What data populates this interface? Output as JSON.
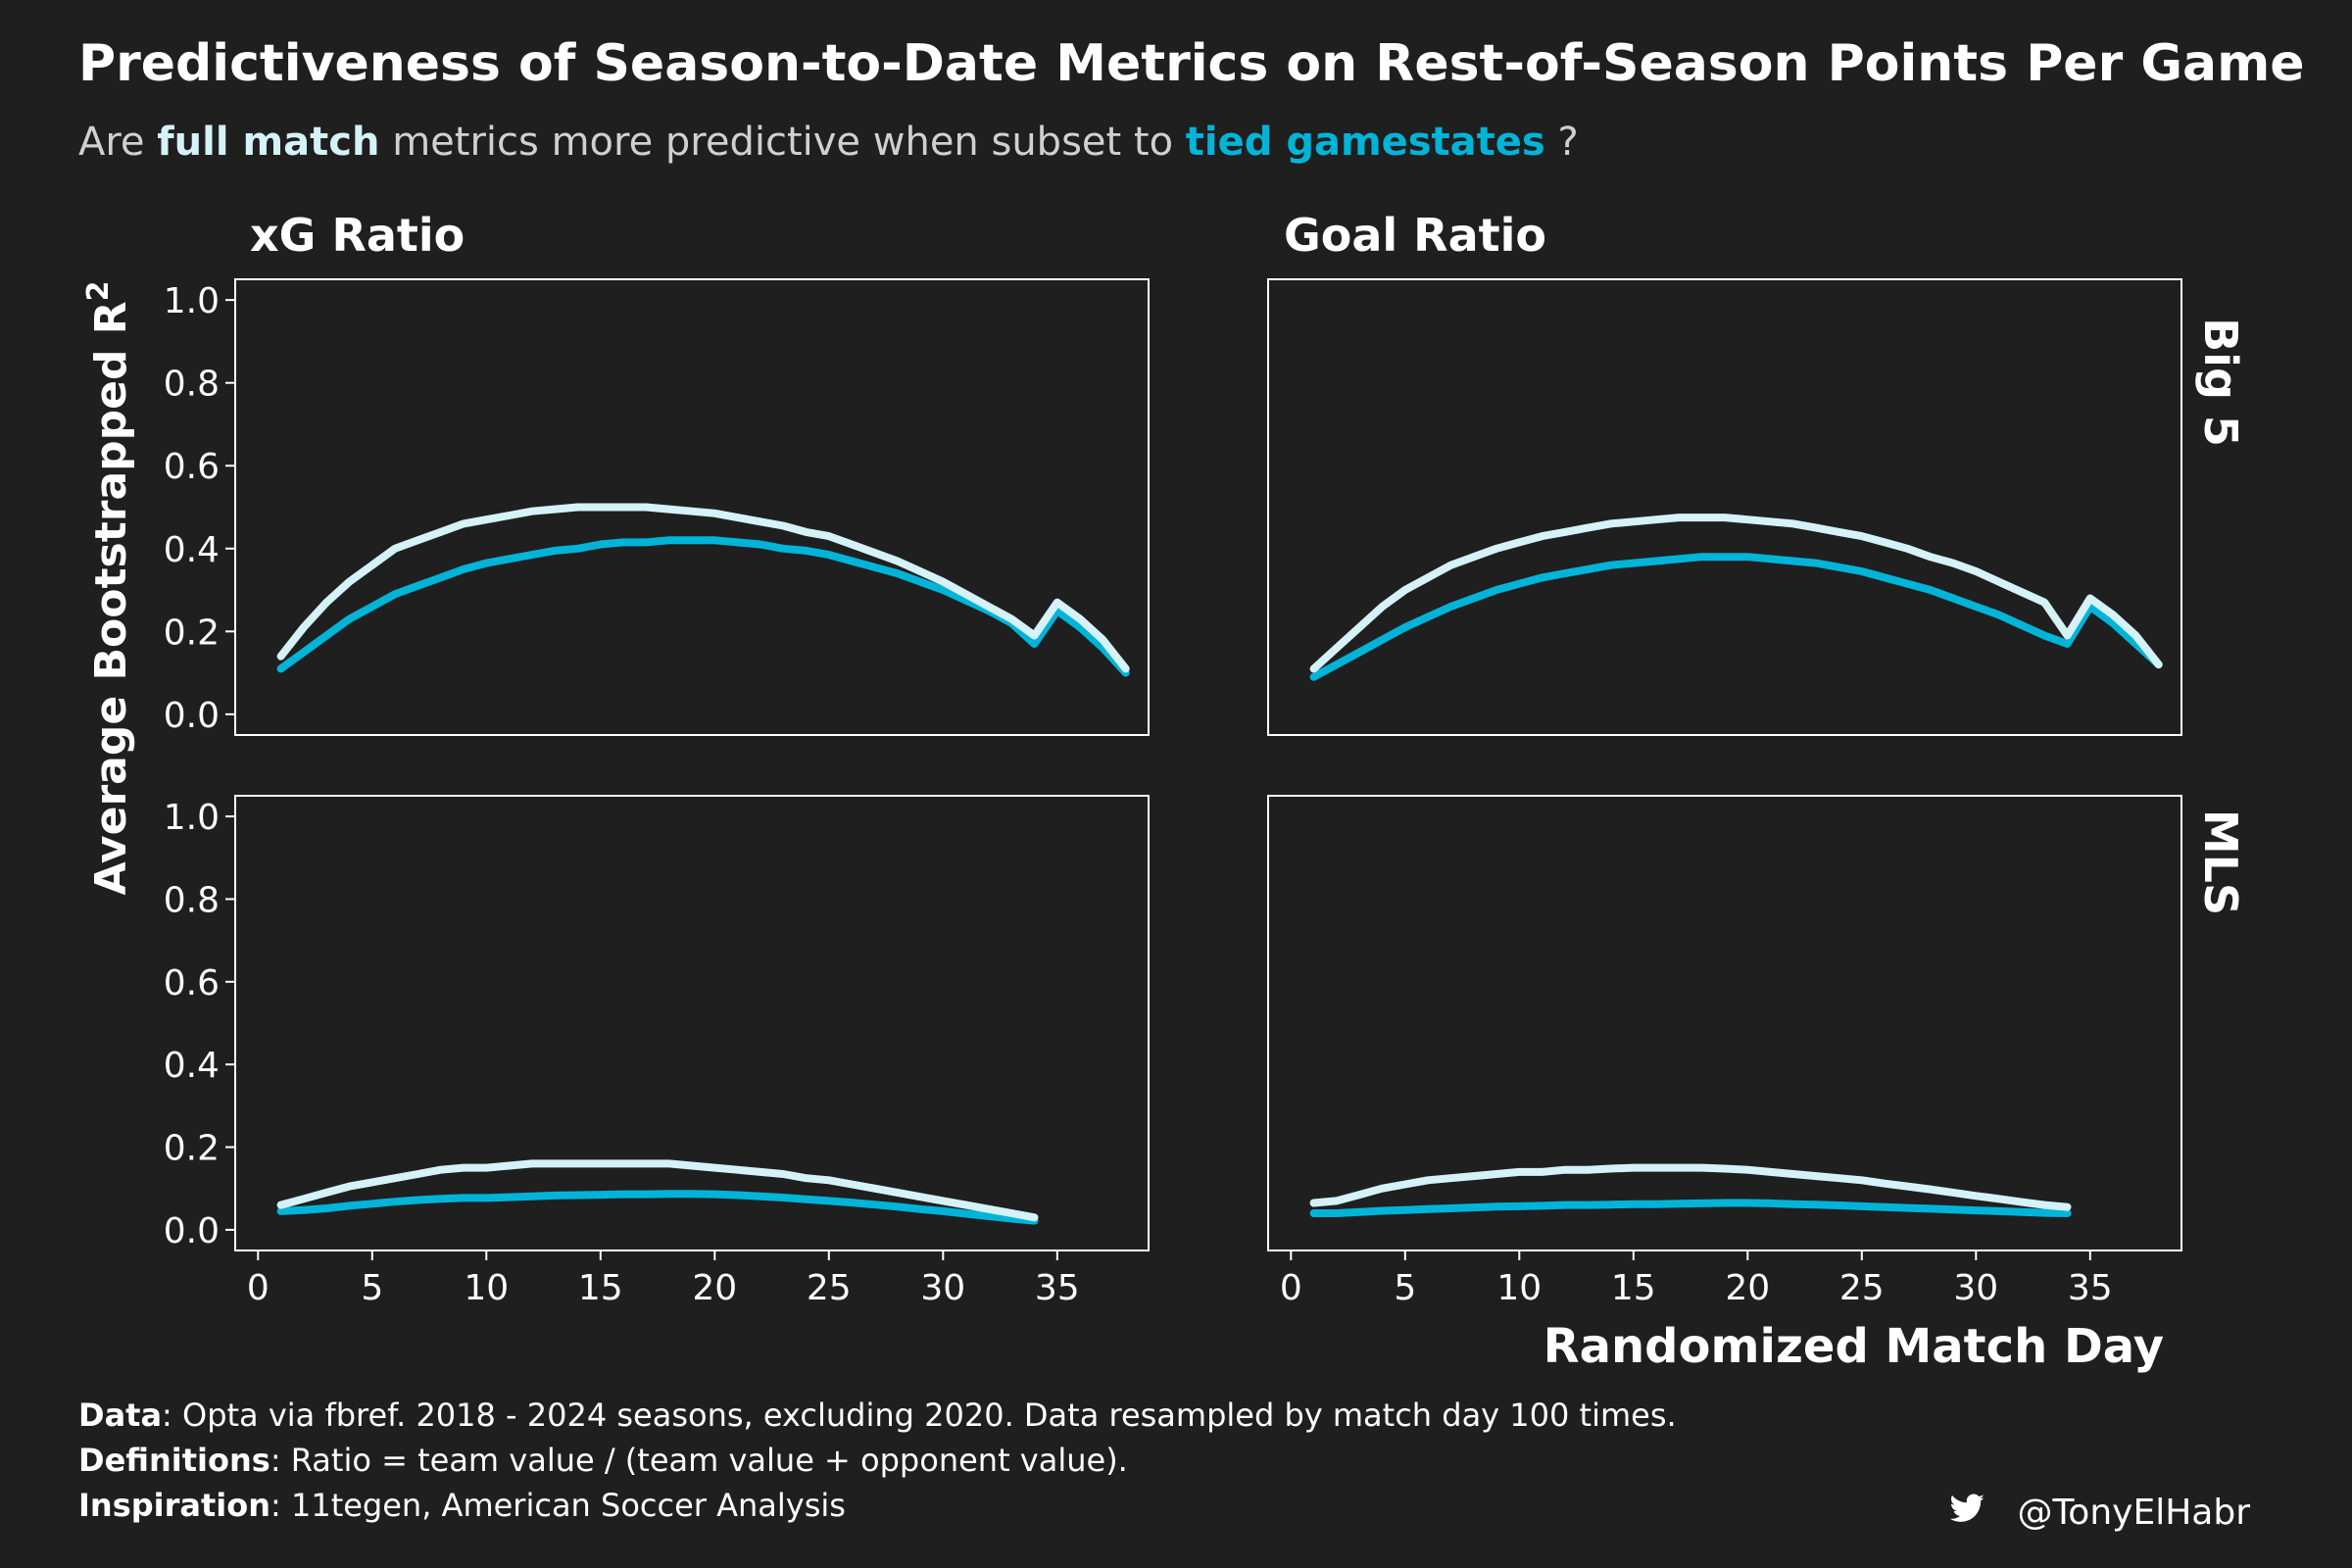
{
  "title": "Predictiveness of Season-to-Date Metrics on Rest-of-Season Points Per Game",
  "subtitle": {
    "prefix": "Are ",
    "full_match": "full match",
    "middle": " metrics more predictive when subset to ",
    "tied": "tied gamestates",
    "suffix": "?"
  },
  "colors": {
    "background": "#1f1f1f",
    "full_match": "#d4f2f7",
    "tied_gamestates": "#00b4d8",
    "subtitle_text": "#d0d0d0"
  },
  "facets": {
    "columns": [
      "xG Ratio",
      "Goal Ratio"
    ],
    "rows": [
      "Big 5",
      "MLS"
    ]
  },
  "ylabel": "Average Bootstrapped R",
  "ylabel_sup": "2",
  "xlabel": "Randomized Match Day",
  "y_ticks": [
    "0.0",
    "0.2",
    "0.4",
    "0.6",
    "0.8",
    "1.0"
  ],
  "x_ticks": [
    "0",
    "5",
    "10",
    "15",
    "20",
    "25",
    "30",
    "35"
  ],
  "chart_data": [
    {
      "type": "line",
      "metric": "xG Ratio",
      "league": "Big 5",
      "xlim": [
        -1,
        39
      ],
      "ylim": [
        -0.05,
        1.05
      ],
      "x": [
        1,
        2,
        3,
        4,
        5,
        6,
        7,
        8,
        9,
        10,
        11,
        12,
        13,
        14,
        15,
        16,
        17,
        18,
        19,
        20,
        21,
        22,
        23,
        24,
        25,
        26,
        27,
        28,
        29,
        30,
        31,
        32,
        33,
        34,
        35,
        36,
        37,
        38
      ],
      "series": [
        {
          "name": "full match",
          "values": [
            0.14,
            0.21,
            0.27,
            0.32,
            0.36,
            0.4,
            0.42,
            0.44,
            0.46,
            0.47,
            0.48,
            0.49,
            0.495,
            0.5,
            0.5,
            0.5,
            0.5,
            0.495,
            0.49,
            0.485,
            0.475,
            0.465,
            0.455,
            0.44,
            0.43,
            0.41,
            0.39,
            0.37,
            0.345,
            0.32,
            0.29,
            0.26,
            0.23,
            0.19,
            0.27,
            0.23,
            0.18,
            0.11
          ]
        },
        {
          "name": "tied gamestates",
          "values": [
            0.11,
            0.15,
            0.19,
            0.23,
            0.26,
            0.29,
            0.31,
            0.33,
            0.35,
            0.365,
            0.375,
            0.385,
            0.395,
            0.4,
            0.41,
            0.415,
            0.415,
            0.42,
            0.42,
            0.42,
            0.415,
            0.41,
            0.4,
            0.395,
            0.385,
            0.37,
            0.355,
            0.34,
            0.32,
            0.3,
            0.275,
            0.25,
            0.22,
            0.17,
            0.25,
            0.21,
            0.16,
            0.1
          ]
        }
      ]
    },
    {
      "type": "line",
      "metric": "Goal Ratio",
      "league": "Big 5",
      "xlim": [
        -1,
        39
      ],
      "ylim": [
        -0.05,
        1.05
      ],
      "x": [
        1,
        2,
        3,
        4,
        5,
        6,
        7,
        8,
        9,
        10,
        11,
        12,
        13,
        14,
        15,
        16,
        17,
        18,
        19,
        20,
        21,
        22,
        23,
        24,
        25,
        26,
        27,
        28,
        29,
        30,
        31,
        32,
        33,
        34,
        35,
        36,
        37,
        38
      ],
      "series": [
        {
          "name": "full match",
          "values": [
            0.11,
            0.16,
            0.21,
            0.26,
            0.3,
            0.33,
            0.36,
            0.38,
            0.4,
            0.415,
            0.43,
            0.44,
            0.45,
            0.46,
            0.465,
            0.47,
            0.475,
            0.475,
            0.475,
            0.47,
            0.465,
            0.46,
            0.45,
            0.44,
            0.43,
            0.415,
            0.4,
            0.38,
            0.365,
            0.345,
            0.32,
            0.295,
            0.27,
            0.19,
            0.28,
            0.24,
            0.19,
            0.12
          ]
        },
        {
          "name": "tied gamestates",
          "values": [
            0.09,
            0.12,
            0.15,
            0.18,
            0.21,
            0.235,
            0.26,
            0.28,
            0.3,
            0.315,
            0.33,
            0.34,
            0.35,
            0.36,
            0.365,
            0.37,
            0.375,
            0.38,
            0.38,
            0.38,
            0.375,
            0.37,
            0.365,
            0.355,
            0.345,
            0.33,
            0.315,
            0.3,
            0.28,
            0.26,
            0.24,
            0.215,
            0.19,
            0.17,
            0.26,
            0.22,
            0.17,
            0.12
          ]
        }
      ]
    },
    {
      "type": "line",
      "metric": "xG Ratio",
      "league": "MLS",
      "xlim": [
        -1,
        39
      ],
      "ylim": [
        -0.05,
        1.05
      ],
      "x": [
        1,
        2,
        3,
        4,
        5,
        6,
        7,
        8,
        9,
        10,
        11,
        12,
        13,
        14,
        15,
        16,
        17,
        18,
        19,
        20,
        21,
        22,
        23,
        24,
        25,
        26,
        27,
        28,
        29,
        30,
        31,
        32,
        33,
        34
      ],
      "series": [
        {
          "name": "full match",
          "values": [
            0.06,
            0.075,
            0.09,
            0.105,
            0.115,
            0.125,
            0.135,
            0.145,
            0.15,
            0.15,
            0.155,
            0.16,
            0.16,
            0.16,
            0.16,
            0.16,
            0.16,
            0.16,
            0.155,
            0.15,
            0.145,
            0.14,
            0.135,
            0.125,
            0.12,
            0.11,
            0.1,
            0.09,
            0.08,
            0.07,
            0.06,
            0.05,
            0.04,
            0.03
          ]
        },
        {
          "name": "tied gamestates",
          "values": [
            0.045,
            0.048,
            0.052,
            0.058,
            0.063,
            0.068,
            0.072,
            0.075,
            0.077,
            0.077,
            0.079,
            0.081,
            0.083,
            0.084,
            0.085,
            0.086,
            0.086,
            0.087,
            0.087,
            0.086,
            0.084,
            0.081,
            0.078,
            0.074,
            0.07,
            0.066,
            0.061,
            0.056,
            0.05,
            0.045,
            0.039,
            0.033,
            0.027,
            0.022
          ]
        }
      ]
    },
    {
      "type": "line",
      "metric": "Goal Ratio",
      "league": "MLS",
      "xlim": [
        -1,
        39
      ],
      "ylim": [
        -0.05,
        1.05
      ],
      "x": [
        1,
        2,
        3,
        4,
        5,
        6,
        7,
        8,
        9,
        10,
        11,
        12,
        13,
        14,
        15,
        16,
        17,
        18,
        19,
        20,
        21,
        22,
        23,
        24,
        25,
        26,
        27,
        28,
        29,
        30,
        31,
        32,
        33,
        34
      ],
      "series": [
        {
          "name": "full match",
          "values": [
            0.065,
            0.07,
            0.085,
            0.1,
            0.11,
            0.12,
            0.125,
            0.13,
            0.135,
            0.14,
            0.14,
            0.145,
            0.145,
            0.148,
            0.15,
            0.15,
            0.15,
            0.15,
            0.148,
            0.145,
            0.14,
            0.135,
            0.13,
            0.125,
            0.12,
            0.112,
            0.105,
            0.098,
            0.09,
            0.082,
            0.075,
            0.067,
            0.06,
            0.055
          ]
        },
        {
          "name": "tied gamestates",
          "values": [
            0.04,
            0.04,
            0.043,
            0.046,
            0.048,
            0.05,
            0.052,
            0.054,
            0.056,
            0.057,
            0.058,
            0.06,
            0.06,
            0.061,
            0.062,
            0.062,
            0.063,
            0.064,
            0.065,
            0.065,
            0.064,
            0.062,
            0.061,
            0.059,
            0.057,
            0.055,
            0.053,
            0.051,
            0.049,
            0.047,
            0.045,
            0.043,
            0.041,
            0.04
          ]
        }
      ]
    }
  ],
  "caption": {
    "data_label": "Data",
    "data_text": ": Opta via fbref. 2018 - 2024 seasons, excluding 2020. Data resampled by match day 100 times.",
    "definitions_label": "Definitions",
    "definitions_text": ": Ratio = team value / (team value + opponent value).",
    "inspiration_label": "Inspiration",
    "inspiration_text": ": 11tegen, American Soccer Analysis"
  },
  "credit": {
    "icon": "twitter-bird-icon",
    "handle": "@TonyElHabr"
  }
}
